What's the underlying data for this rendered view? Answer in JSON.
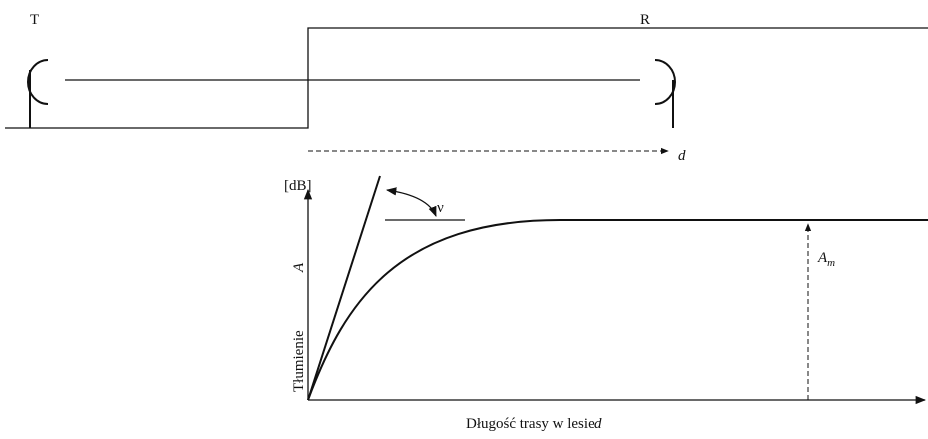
{
  "diagram": {
    "top": {
      "transmitter": "T",
      "receiver": "R",
      "distance": "d"
    },
    "graph": {
      "unit": "[dB]",
      "angle": "ν",
      "y_label": "Tłumienie",
      "y_symbol": "A",
      "asymptote_label": {
        "base": "A",
        "sub": "m"
      },
      "x_label": "Długość trasy w lesie",
      "x_symbol": "d"
    }
  }
}
